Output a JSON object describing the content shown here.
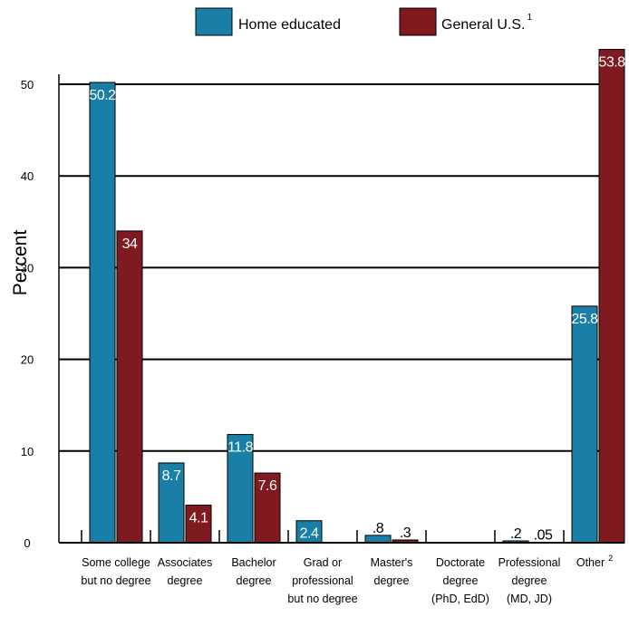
{
  "chart_data": {
    "type": "bar",
    "ylabel": "Percent",
    "ylim": [
      0,
      55
    ],
    "yticks": [
      0,
      10,
      20,
      30,
      40,
      50
    ],
    "grid": true,
    "legend_position": "top-center",
    "categories": [
      [
        "Some college",
        "but no degree"
      ],
      [
        "Associates",
        "degree"
      ],
      [
        "Bachelor",
        "degree"
      ],
      [
        "Grad or",
        "professional",
        "but no degree"
      ],
      [
        "Master's",
        "degree"
      ],
      [
        "Doctorate",
        "degree",
        "(PhD, EdD)"
      ],
      [
        "Professional",
        "degree",
        "(MD, JD)"
      ],
      [
        "Other"
      ]
    ],
    "category_superscripts": [
      "",
      "",
      "",
      "",
      "",
      "",
      "",
      "2"
    ],
    "series": [
      {
        "name": "Home educated",
        "name_superscript": "",
        "color": "#1a7fa6",
        "values": [
          50.2,
          8.7,
          11.8,
          2.4,
          0.8,
          0,
          0.2,
          25.8
        ],
        "labels": [
          "50.2",
          "8.7",
          "11.8",
          "2.4",
          ".8",
          "",
          ".2",
          "25.8"
        ]
      },
      {
        "name": "General U.S.",
        "name_superscript": "1",
        "color": "#7f1a20",
        "values": [
          34,
          4.1,
          7.6,
          0,
          0.3,
          0,
          0.05,
          53.8
        ],
        "labels": [
          "34",
          "4.1",
          "7.6",
          "",
          ".3",
          "",
          ".05",
          "53.8"
        ]
      }
    ]
  }
}
